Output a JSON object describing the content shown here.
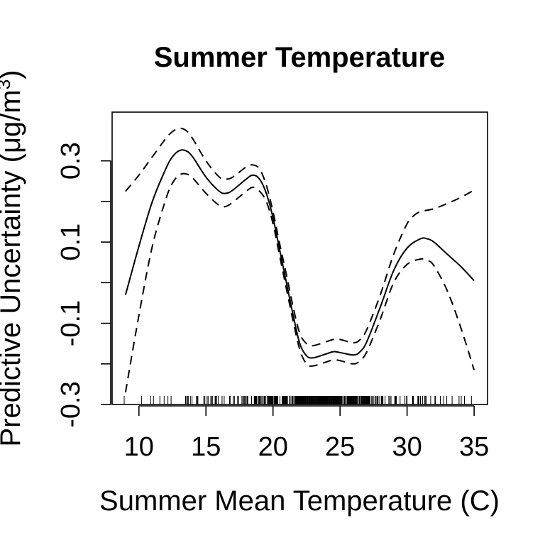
{
  "chart_data": {
    "type": "line",
    "title": "Summer Temperature",
    "xlabel": "Summer Mean Temperature (C)",
    "ylabel_prefix": "Predictive Uncertainty (",
    "ylabel_mu": "μ",
    "ylabel_unit": "g/m",
    "ylabel_sup": "3",
    "ylabel_suffix": ")",
    "xlim": [
      8,
      36
    ],
    "ylim": [
      -0.3,
      0.42
    ],
    "x_ticks": [
      10,
      15,
      20,
      25,
      30,
      35
    ],
    "x_tick_labels": [
      "10",
      "15",
      "20",
      "25",
      "30",
      "35"
    ],
    "y_ticks": [
      -0.3,
      -0.2,
      -0.1,
      0.0,
      0.1,
      0.2,
      0.3
    ],
    "y_tick_labels": [
      "-0.3",
      "",
      "-0.1",
      "",
      "0.1",
      "",
      "0.3"
    ],
    "grid": false,
    "series": [
      {
        "role": "fit",
        "style": "solid",
        "x": [
          9,
          10,
          11,
          12,
          12.5,
          13,
          13.5,
          14,
          15,
          16,
          16.5,
          17,
          18,
          18.5,
          19,
          19.5,
          20,
          20.5,
          21,
          21.5,
          22,
          22.5,
          23,
          24,
          24.5,
          25,
          26,
          26.5,
          27,
          28,
          29,
          30,
          31,
          31.5,
          32,
          33,
          34,
          35
        ],
        "y": [
          -0.03,
          0.09,
          0.2,
          0.28,
          0.31,
          0.325,
          0.325,
          0.31,
          0.26,
          0.225,
          0.22,
          0.228,
          0.255,
          0.265,
          0.255,
          0.22,
          0.16,
          0.08,
          0.0,
          -0.08,
          -0.15,
          -0.18,
          -0.185,
          -0.175,
          -0.17,
          -0.172,
          -0.178,
          -0.17,
          -0.145,
          -0.06,
          0.03,
          0.085,
          0.108,
          0.108,
          0.1,
          0.07,
          0.04,
          0.005
        ]
      },
      {
        "role": "upper",
        "style": "dashed",
        "x": [
          9,
          10,
          11,
          12,
          12.5,
          13,
          13.5,
          14,
          15,
          16,
          16.5,
          17,
          18,
          18.5,
          19,
          19.5,
          20,
          20.5,
          21,
          21.5,
          22,
          22.5,
          23,
          24,
          24.5,
          25,
          26,
          26.5,
          27,
          28,
          29,
          30,
          30.5,
          31,
          32,
          33,
          34,
          35
        ],
        "y": [
          0.225,
          0.265,
          0.31,
          0.355,
          0.372,
          0.38,
          0.375,
          0.355,
          0.3,
          0.26,
          0.255,
          0.26,
          0.285,
          0.29,
          0.28,
          0.24,
          0.175,
          0.095,
          0.02,
          -0.06,
          -0.125,
          -0.15,
          -0.155,
          -0.145,
          -0.14,
          -0.14,
          -0.148,
          -0.14,
          -0.115,
          -0.03,
          0.07,
          0.145,
          0.165,
          0.175,
          0.182,
          0.195,
          0.21,
          0.228
        ]
      },
      {
        "role": "lower",
        "style": "dashed",
        "x": [
          9,
          10,
          11,
          12,
          12.5,
          13,
          13.5,
          14,
          15,
          16,
          16.5,
          17,
          18,
          18.5,
          19,
          19.5,
          20,
          20.5,
          21,
          21.5,
          22,
          22.5,
          23,
          24,
          24.5,
          25,
          26,
          26.5,
          27,
          28,
          29,
          30,
          31,
          31.5,
          32,
          33,
          34,
          35
        ],
        "y": [
          -0.27,
          -0.08,
          0.09,
          0.205,
          0.245,
          0.265,
          0.268,
          0.258,
          0.22,
          0.19,
          0.188,
          0.198,
          0.225,
          0.235,
          0.225,
          0.2,
          0.145,
          0.065,
          -0.015,
          -0.095,
          -0.165,
          -0.2,
          -0.205,
          -0.195,
          -0.19,
          -0.192,
          -0.2,
          -0.192,
          -0.17,
          -0.09,
          0.0,
          0.045,
          0.058,
          0.055,
          0.042,
          -0.02,
          -0.11,
          -0.215
        ]
      }
    ],
    "rug": {
      "min": 10.2,
      "max": 34.5,
      "extra": [
        8.9,
        34.8
      ],
      "density_center": 23.5,
      "density_spread": 5.0
    }
  }
}
